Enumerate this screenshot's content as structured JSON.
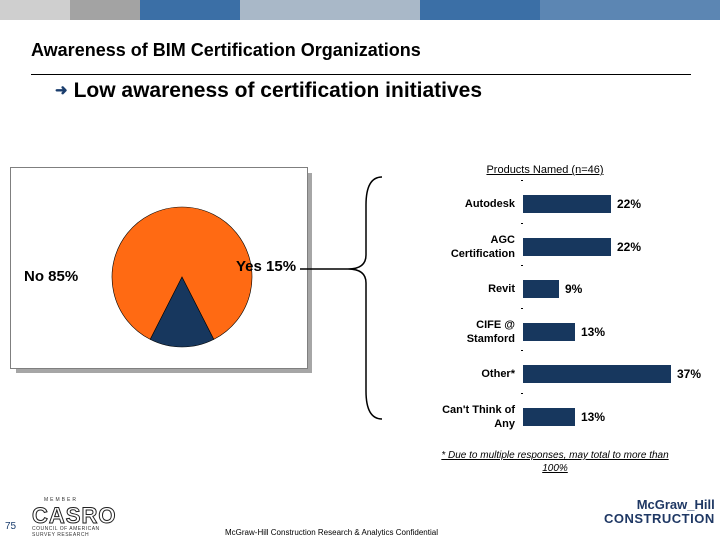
{
  "header": {
    "title": "Awareness of BIM Certification Organizations",
    "subtitle": "Low awareness of certification initiatives",
    "bar_colors": [
      "#cfcfcf",
      "#a3a3a3",
      "#3b6fa6",
      "#a9b8c8",
      "#3b6fa6",
      "#5c86b3",
      "#5c86b3"
    ]
  },
  "pie": {
    "slices": [
      {
        "label": "No 85%",
        "value": 85,
        "color": "#ff6a13"
      },
      {
        "label": "Yes 15%",
        "value": 15,
        "color": "#17375e"
      }
    ]
  },
  "chart_data": [
    {
      "type": "pie",
      "categories": [
        "No",
        "Yes"
      ],
      "values": [
        85,
        15
      ]
    },
    {
      "type": "bar",
      "title": "Products Named (n=46)",
      "categories": [
        "Autodesk",
        "AGC Certification",
        "Revit",
        "CIFE @ Stamford",
        "Other*",
        "Can't Think of Any"
      ],
      "category_lines": [
        [
          "Autodesk"
        ],
        [
          "AGC",
          "Certification"
        ],
        [
          "Revit"
        ],
        [
          "CIFE @",
          "Stamford"
        ],
        [
          "Other*"
        ],
        [
          "Can't Think of",
          "Any"
        ]
      ],
      "values": [
        22,
        22,
        9,
        13,
        37,
        13
      ],
      "value_labels": [
        "22%",
        "22%",
        "9%",
        "13%",
        "37%",
        "13%"
      ],
      "color": "#17375e"
    }
  ],
  "footnote": "* Due to multiple responses, may total to more than 100%",
  "footer": {
    "page_number": "75",
    "confidential": "McGraw-Hill Construction Research & Analytics Confidential",
    "casro_top": "MEMBER",
    "casro_text": "CASRO",
    "casro_bottom": "COUNCIL OF AMERICAN SURVEY RESEARCH",
    "logo_line1": "McGraw_Hill",
    "logo_line2": "CONSTRUCTION"
  }
}
